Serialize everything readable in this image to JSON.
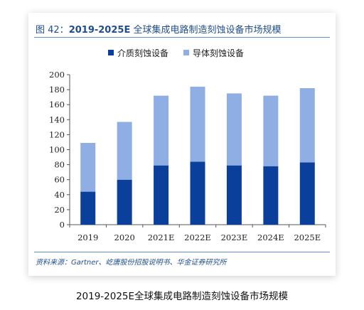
{
  "figure": {
    "label": "图 42：",
    "number_title": "2019-2025E",
    "title_rest": " 全球集成电路制造刻蚀设备市场规模",
    "source": "资料来源：Gartner、屹唐股份招股说明书、华金证券研究所"
  },
  "caption": "2019-2025E全球集成电路制造刻蚀设备市场规模",
  "chart_data": {
    "type": "bar",
    "stacked": true,
    "categories": [
      "2019",
      "2020",
      "2021E",
      "2022E",
      "2023E",
      "2024E",
      "2025E"
    ],
    "series": [
      {
        "name": "介质刻蚀设备",
        "color": "#0b3f9c",
        "values": [
          44,
          60,
          79,
          84,
          79,
          78,
          83
        ]
      },
      {
        "name": "导体刻蚀设备",
        "color": "#8faee3",
        "values": [
          65,
          77,
          93,
          100,
          96,
          94,
          99
        ]
      }
    ],
    "ylim": [
      0,
      200
    ],
    "yticks": [
      0,
      20,
      40,
      60,
      80,
      100,
      120,
      140,
      160,
      180,
      200
    ],
    "legend_position": "top-center",
    "grid": false
  }
}
